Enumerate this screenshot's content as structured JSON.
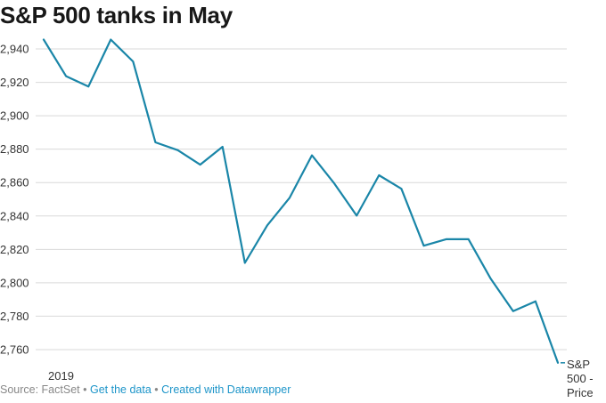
{
  "title": "S&P 500 tanks in May",
  "footer": {
    "source_label": "Source: FactSet",
    "separator": "•",
    "data_link": "Get the data",
    "credit_link": "Created with Datawrapper"
  },
  "colors": {
    "line": "#1a86a8",
    "grid": "#d9d9d9",
    "link": "#1d95c9"
  },
  "chart_data": {
    "type": "line",
    "title": "S&P 500 tanks in May",
    "xlabel": "",
    "ylabel": "",
    "x_tick_labels": [
      "2019"
    ],
    "ylim": [
      2752,
      2948
    ],
    "y_ticks": [
      2760,
      2780,
      2800,
      2820,
      2840,
      2860,
      2880,
      2900,
      2920,
      2940
    ],
    "y_tick_labels": [
      "2,760",
      "2,780",
      "2,800",
      "2,820",
      "2,840",
      "2,860",
      "2,880",
      "2,900",
      "2,920",
      "2,940"
    ],
    "grid": true,
    "series": [
      {
        "name": "S&P 500 - Price",
        "values": [
          2945.6,
          2923.7,
          2917.5,
          2945.6,
          2932.5,
          2884.1,
          2879.4,
          2870.7,
          2881.4,
          2811.9,
          2834.4,
          2850.9,
          2876.3,
          2859.5,
          2840.2,
          2864.4,
          2856.3,
          2822.2,
          2826.1,
          2826.1,
          2802.4,
          2783.0,
          2788.9,
          2752.1
        ]
      }
    ]
  }
}
